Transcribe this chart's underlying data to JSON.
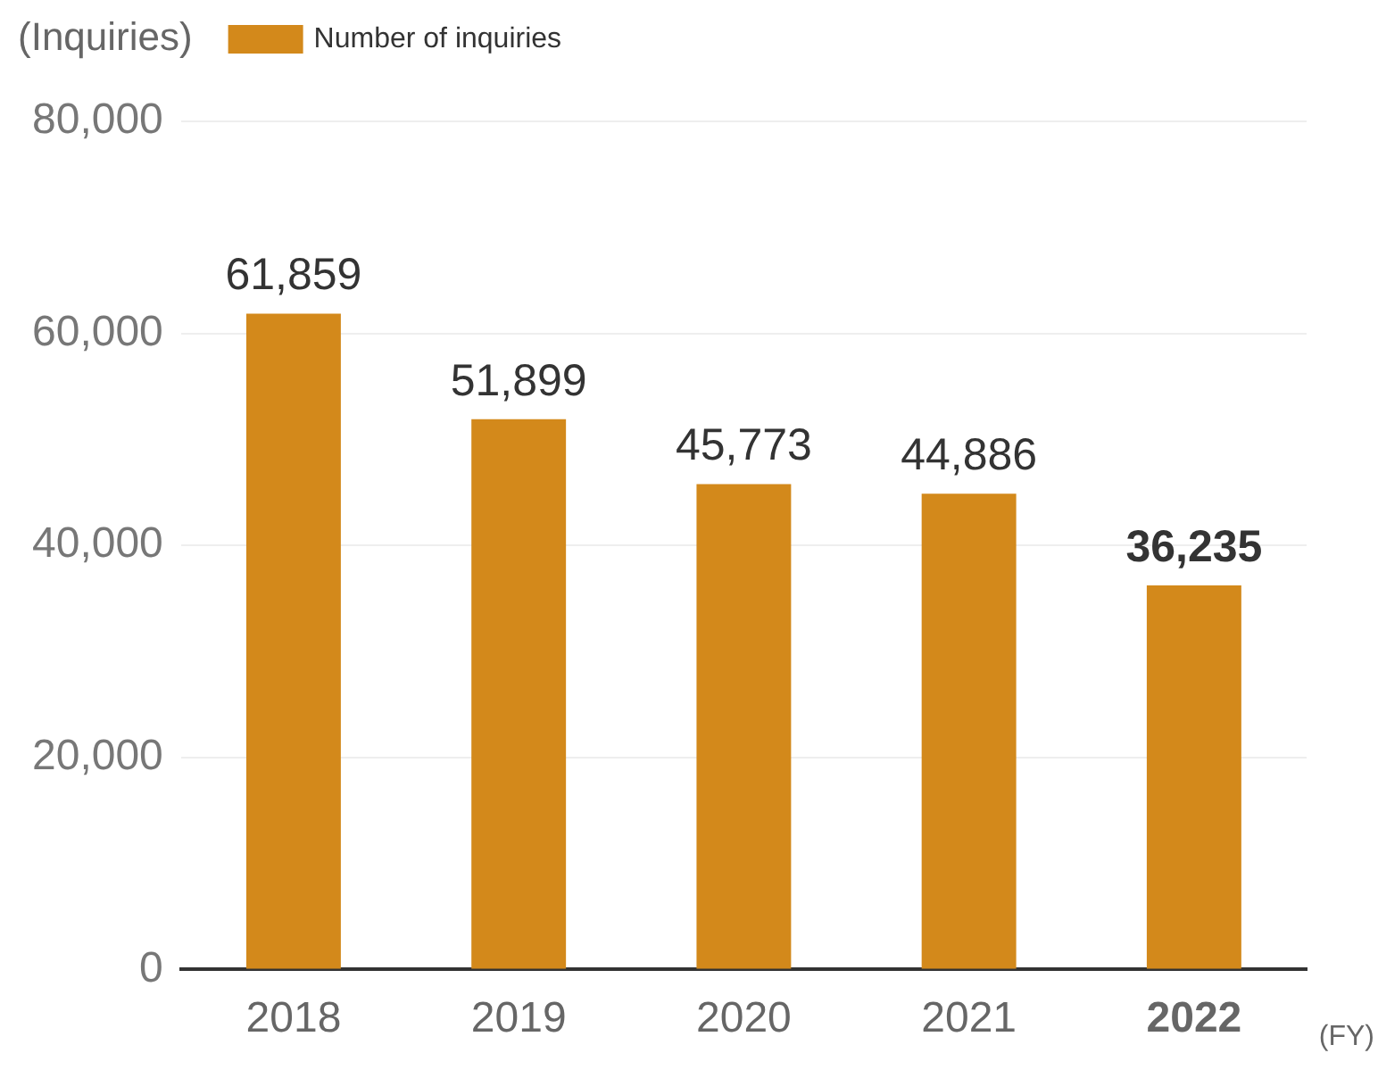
{
  "chart_data": {
    "type": "bar",
    "ylabel": "(Inquiries)",
    "xlabel": "(FY)",
    "categories": [
      "2018",
      "2019",
      "2020",
      "2021",
      "2022"
    ],
    "series": [
      {
        "name": "Number of inquiries",
        "color": "#d3891b",
        "values": [
          61859,
          51899,
          45773,
          44886,
          36235
        ],
        "value_labels": [
          "61,859",
          "51,899",
          "45,773",
          "44,886",
          "36,235"
        ]
      }
    ],
    "ylim": [
      0,
      80000
    ],
    "yticks": [
      {
        "value": 0,
        "label": "0"
      },
      {
        "value": 20000,
        "label": "20,000"
      },
      {
        "value": 40000,
        "label": "40,000"
      },
      {
        "value": 60000,
        "label": "60,000"
      },
      {
        "value": 80000,
        "label": "80,000"
      }
    ],
    "grid": "y",
    "legend": "top"
  }
}
